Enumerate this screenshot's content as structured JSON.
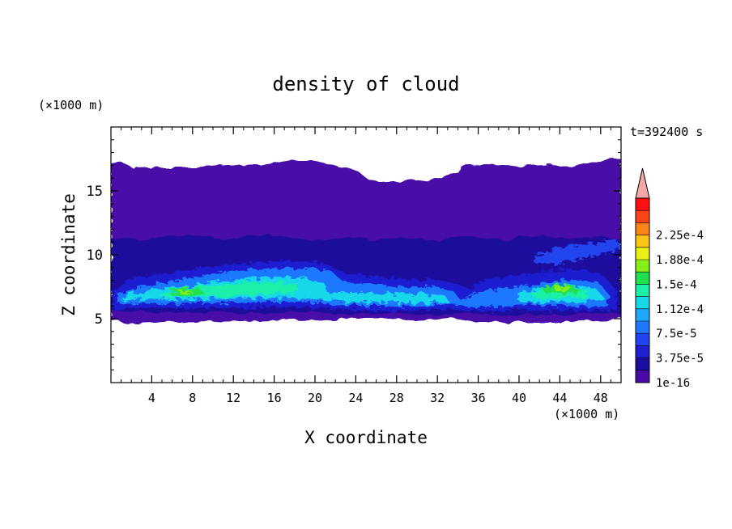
{
  "chart_data": {
    "type": "heatmap",
    "title": "density of cloud",
    "xlabel": "X coordinate",
    "ylabel": "Z coordinate",
    "x_unit": "(×1000 m)",
    "y_unit": "(×1000 m)",
    "time_label": "t=392400 s",
    "xlim": [
      0,
      50
    ],
    "ylim": [
      0,
      20
    ],
    "x_ticks": [
      4,
      8,
      12,
      16,
      20,
      24,
      28,
      32,
      36,
      40,
      44,
      48
    ],
    "y_ticks": [
      5,
      10,
      15
    ],
    "colorbar": {
      "labels": [
        "1e-16",
        "3.75e-5",
        "7.5e-5",
        "1.12e-4",
        "1.5e-4",
        "1.88e-4",
        "2.25e-4"
      ],
      "levels": [
        1e-16,
        1.875e-05,
        3.75e-05,
        5.625e-05,
        7.5e-05,
        9.375e-05,
        0.0001125,
        0.00013125,
        0.00015,
        0.00016875,
        0.0001875,
        0.00020625,
        0.000225,
        0.00024375
      ],
      "colors": [
        "#4a0aa8",
        "#1c0e9c",
        "#1f1fd0",
        "#2244f0",
        "#1f78ff",
        "#1ea8ff",
        "#18d8e8",
        "#1cf0a8",
        "#20e050",
        "#88ee18",
        "#e8f018",
        "#ffc418",
        "#ff8418",
        "#ff4418",
        "#ff1010"
      ],
      "overflow_color": "#f5a8a8"
    },
    "regions": [
      {
        "name": "upper cloud layer",
        "x": [
          0,
          50
        ],
        "z": [
          4.8,
          17.3
        ],
        "value": 1e-16
      },
      {
        "name": "mid layer",
        "x": [
          0,
          50
        ],
        "z": [
          5.0,
          11.3
        ],
        "value": 1.875e-05
      },
      {
        "name": "lower dense band",
        "x": [
          0,
          50
        ],
        "z": [
          5.2,
          9.0
        ],
        "value": 5.625e-05
      },
      {
        "name": "core west",
        "x": [
          6,
          10
        ],
        "z": [
          6.5,
          7.5
        ],
        "value": 0.00015
      },
      {
        "name": "core central",
        "x": [
          12,
          22
        ],
        "z": [
          6.5,
          8.5
        ],
        "value": 0.0001125
      },
      {
        "name": "core east",
        "x": [
          42,
          47
        ],
        "z": [
          7.0,
          8.0
        ],
        "value": 0.00015
      }
    ]
  }
}
